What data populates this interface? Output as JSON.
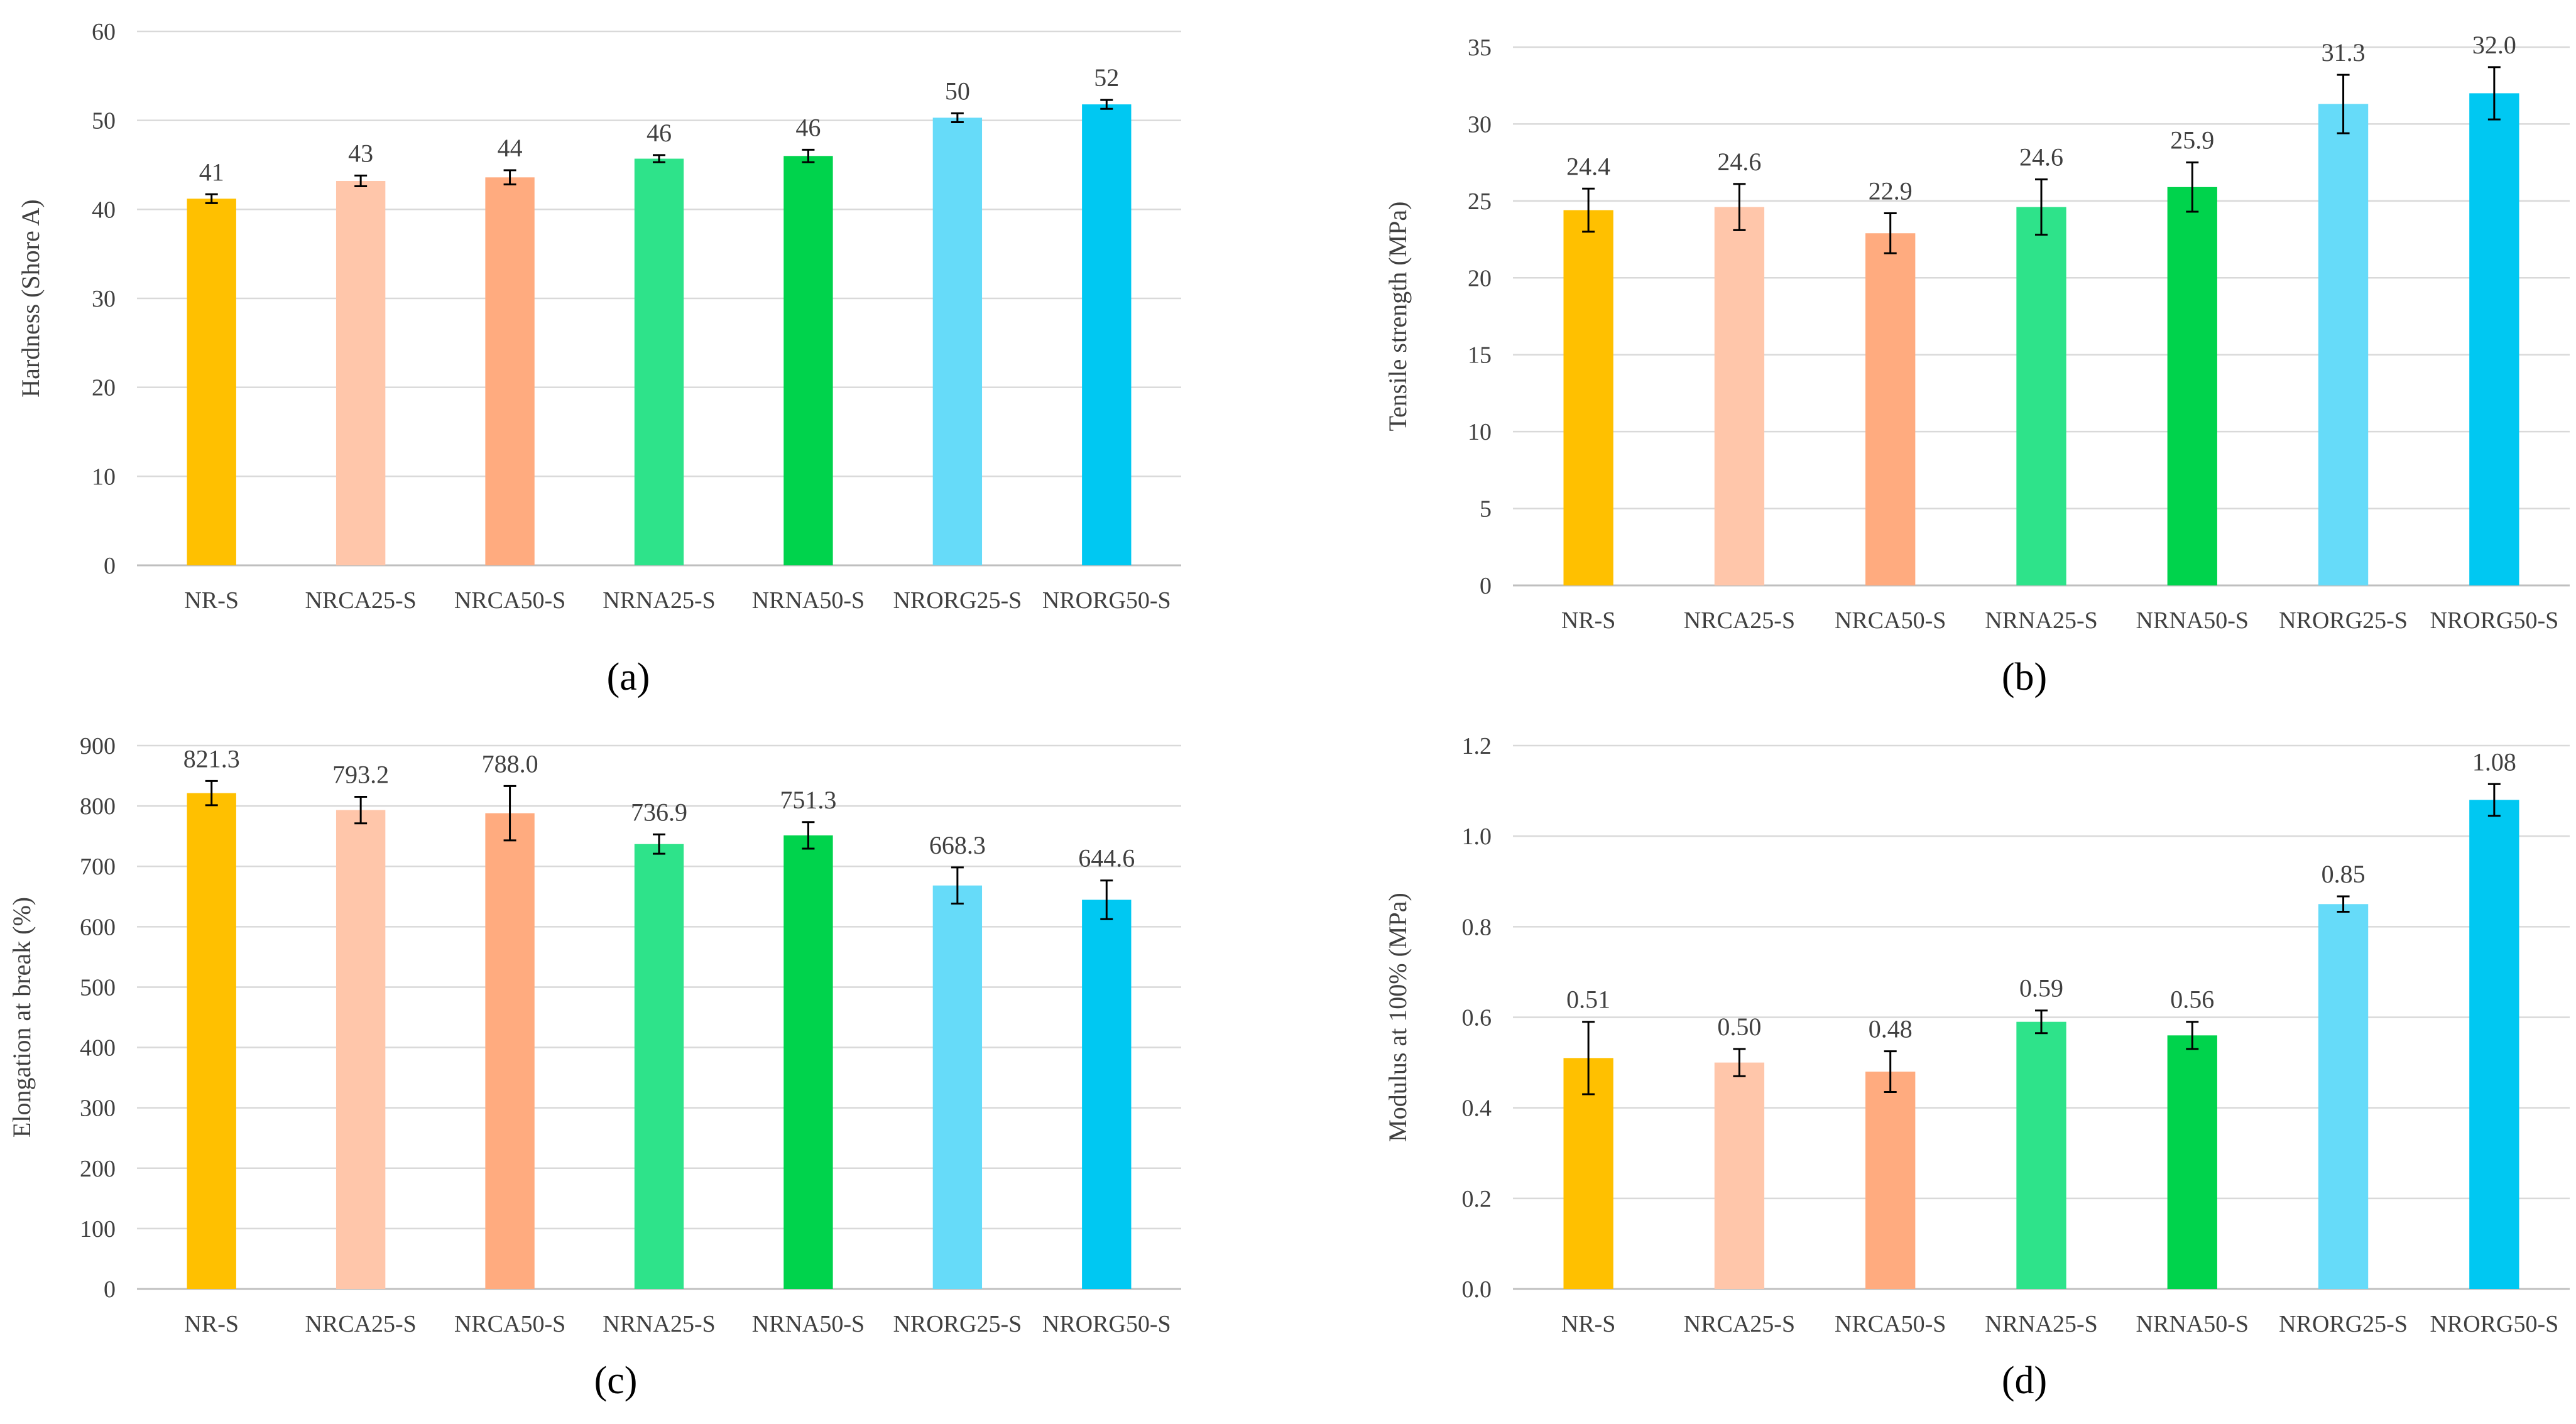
{
  "colors": {
    "grid": "#d9d9d9",
    "axis": "#bfbfbf",
    "text": "#404040",
    "error": "#000000",
    "bars": [
      "#ffc000",
      "#ffc6aa",
      "#ffab7f",
      "#2ee38a",
      "#00d34c",
      "#66dbf9",
      "#00c8f2"
    ]
  },
  "chart_data": [
    {
      "panel": "(a)",
      "type": "bar",
      "title": "",
      "ylabel": "Hardness (Shore A)",
      "xlabel": "",
      "ylim": [
        0,
        60
      ],
      "ytick_step": 10,
      "ytick_decimals": 0,
      "categories": [
        "NR-S",
        "NRCA25-S",
        "NRCA50-S",
        "NRNA25-S",
        "NRNA50-S",
        "NRORG25-S",
        "NRORG50-S"
      ],
      "values": [
        41.2,
        43.2,
        43.6,
        45.7,
        46.0,
        50.3,
        51.8
      ],
      "errors": [
        0.5,
        0.6,
        0.8,
        0.4,
        0.7,
        0.5,
        0.5
      ],
      "labels": [
        "41",
        "43",
        "44",
        "46",
        "46",
        "50",
        "52"
      ]
    },
    {
      "panel": "(b)",
      "type": "bar",
      "title": "",
      "ylabel": "Tensile strength  (MPa)",
      "xlabel": "",
      "ylim": [
        0,
        35
      ],
      "ytick_step": 5,
      "ytick_decimals": 0,
      "categories": [
        "NR-S",
        "NRCA25-S",
        "NRCA50-S",
        "NRNA25-S",
        "NRNA50-S",
        "NRORG25-S",
        "NRORG50-S"
      ],
      "values": [
        24.4,
        24.6,
        22.9,
        24.6,
        25.9,
        31.3,
        32.0
      ],
      "errors": [
        1.4,
        1.5,
        1.3,
        1.8,
        1.6,
        1.9,
        1.7
      ],
      "labels": [
        "24.4",
        "24.6",
        "22.9",
        "24.6",
        "25.9",
        "31.3",
        "32.0"
      ]
    },
    {
      "panel": "(c)",
      "type": "bar",
      "title": "",
      "ylabel": "Elongation at break  (%)",
      "xlabel": "",
      "ylim": [
        0,
        900
      ],
      "ytick_step": 100,
      "ytick_decimals": 0,
      "categories": [
        "NR-S",
        "NRCA25-S",
        "NRCA50-S",
        "NRNA25-S",
        "NRNA50-S",
        "NRORG25-S",
        "NRORG50-S"
      ],
      "values": [
        821.3,
        793.2,
        788.0,
        736.9,
        751.3,
        668.3,
        644.6
      ],
      "errors": [
        20,
        22,
        45,
        16,
        22,
        30,
        32
      ],
      "labels": [
        "821.3",
        "793.2",
        "788.0",
        "736.9",
        "751.3",
        "668.3",
        "644.6"
      ]
    },
    {
      "panel": "(d)",
      "type": "bar",
      "title": "",
      "ylabel": "Modulus at 100% (MPa)",
      "xlabel": "",
      "ylim": [
        0,
        1.2
      ],
      "ytick_step": 0.2,
      "ytick_decimals": 1,
      "categories": [
        "NR-S",
        "NRCA25-S",
        "NRCA50-S",
        "NRNA25-S",
        "NRNA50-S",
        "NRORG25-S",
        "NRORG50-S"
      ],
      "values": [
        0.51,
        0.5,
        0.48,
        0.59,
        0.56,
        0.85,
        1.08
      ],
      "errors": [
        0.08,
        0.03,
        0.045,
        0.025,
        0.03,
        0.017,
        0.035
      ],
      "labels": [
        "0.51",
        "0.50",
        "0.48",
        "0.59",
        "0.56",
        "0.85",
        "1.08"
      ]
    }
  ]
}
